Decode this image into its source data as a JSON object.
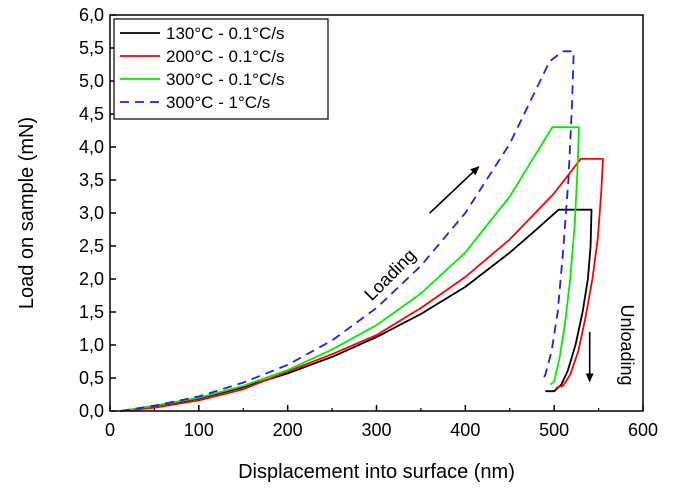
{
  "chart_data": {
    "type": "line",
    "title": "",
    "xlabel": "Displacement into surface (nm)",
    "ylabel": "Load on sample (mN)",
    "xlim": [
      0,
      600
    ],
    "ylim": [
      0,
      6.0
    ],
    "x_ticks": [
      "0",
      "100",
      "200",
      "300",
      "400",
      "500",
      "600"
    ],
    "y_ticks": [
      "0,0",
      "0,5",
      "1,0",
      "1,5",
      "2,0",
      "2,5",
      "3,0",
      "3,5",
      "4,0",
      "4,5",
      "5,0",
      "5,5",
      "6,0"
    ],
    "grid": false,
    "legend_position": "top-left",
    "annotations": [
      {
        "text": "Loading",
        "x": 320,
        "y": 2.0,
        "angle_deg": -45,
        "arrow_from": [
          360,
          3.0
        ],
        "arrow_to": [
          415,
          3.7
        ]
      },
      {
        "text": "Unloading",
        "x": 575,
        "y": 1.0,
        "angle_deg": 90,
        "arrow_from": [
          540,
          1.2
        ],
        "arrow_to": [
          540,
          0.45
        ]
      }
    ],
    "series": [
      {
        "name": "130°C - 0.1°C/s",
        "color": "#000000",
        "dash": "solid",
        "x": [
          12,
          50,
          100,
          150,
          200,
          250,
          300,
          350,
          400,
          450,
          480,
          505,
          520,
          542,
          541,
          538,
          532,
          524,
          515,
          508,
          500,
          490
        ],
        "y": [
          0,
          0.07,
          0.19,
          0.36,
          0.57,
          0.82,
          1.12,
          1.47,
          1.88,
          2.4,
          2.75,
          3.05,
          3.05,
          3.05,
          2.5,
          2.0,
          1.5,
          1.0,
          0.6,
          0.4,
          0.3,
          0.3
        ]
      },
      {
        "name": "200°C - 0.1°C/s",
        "color": "#ff0000",
        "dash": "solid",
        "x": [
          12,
          50,
          100,
          150,
          200,
          250,
          300,
          350,
          400,
          450,
          500,
          530,
          555,
          553,
          549,
          543,
          535,
          527,
          518,
          510,
          502
        ],
        "y": [
          0,
          0.05,
          0.16,
          0.33,
          0.6,
          0.86,
          1.15,
          1.56,
          2.03,
          2.6,
          3.3,
          3.82,
          3.82,
          3.3,
          2.6,
          2.0,
          1.4,
          0.9,
          0.55,
          0.38,
          0.35
        ]
      },
      {
        "name": "300°C - 0.1°C/s",
        "color": "#00ee00",
        "dash": "solid",
        "x": [
          12,
          50,
          100,
          150,
          200,
          250,
          300,
          350,
          400,
          450,
          498,
          510,
          528,
          526,
          523,
          518,
          512,
          506,
          500,
          496
        ],
        "y": [
          0,
          0.08,
          0.2,
          0.38,
          0.62,
          0.93,
          1.3,
          1.78,
          2.4,
          3.25,
          4.3,
          4.3,
          4.3,
          3.6,
          2.8,
          2.0,
          1.3,
          0.8,
          0.45,
          0.4
        ]
      },
      {
        "name": "300°C - 1°C/s",
        "color": "#1f1fef",
        "dash": "dashed",
        "x": [
          12,
          50,
          100,
          150,
          200,
          250,
          300,
          350,
          400,
          450,
          495,
          510,
          522,
          520,
          516,
          510,
          504,
          497,
          490,
          486
        ],
        "y": [
          0,
          0.08,
          0.22,
          0.43,
          0.7,
          1.07,
          1.56,
          2.2,
          3.0,
          4.05,
          5.3,
          5.45,
          5.45,
          4.6,
          3.5,
          2.4,
          1.5,
          0.9,
          0.55,
          0.45
        ]
      }
    ]
  }
}
